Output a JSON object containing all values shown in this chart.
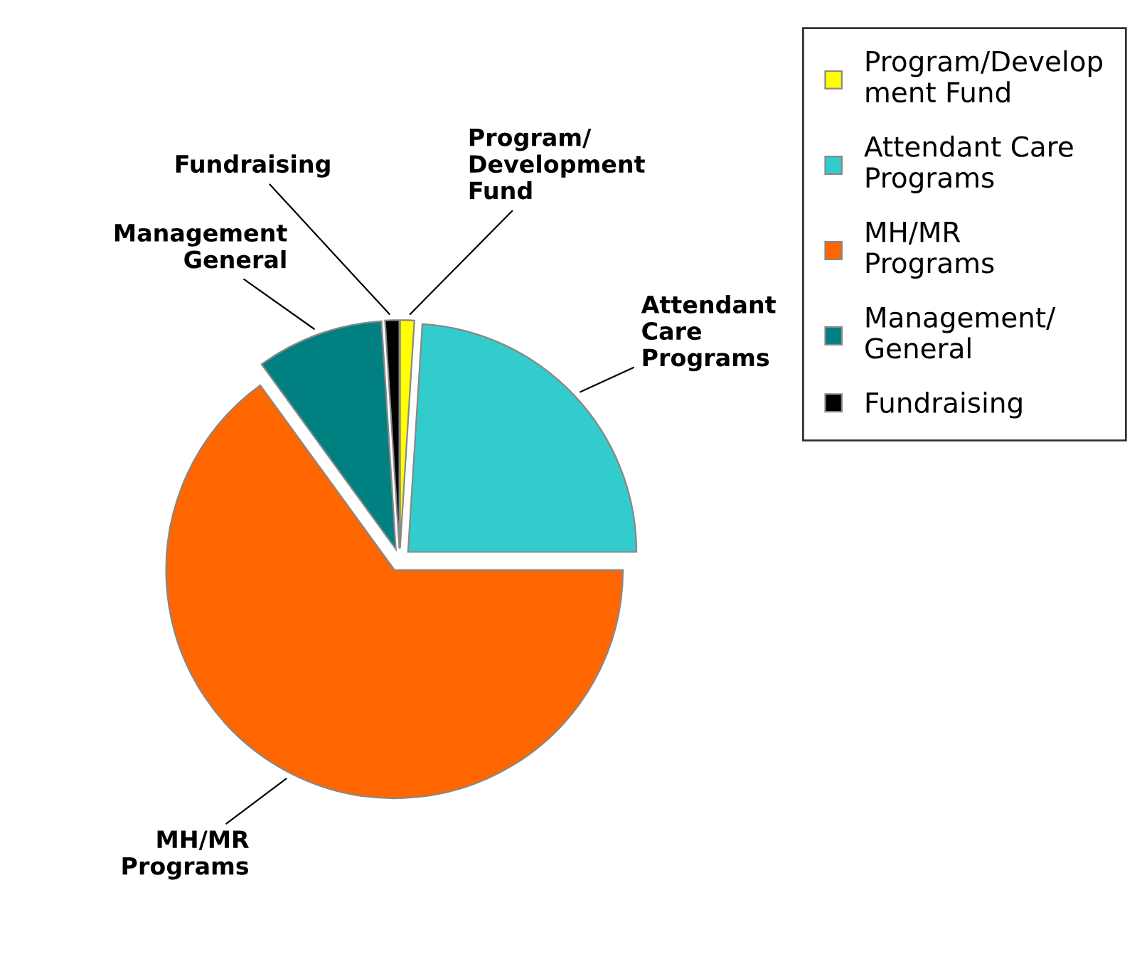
{
  "chart_data": {
    "type": "pie",
    "categories": [
      "Program/Develop\nment Fund",
      "Attendant Care\nPrograms",
      "MH/MR\nPrograms",
      "Management/\nGeneral",
      "Fundraising"
    ],
    "values": [
      1,
      24,
      65,
      9,
      1
    ],
    "colors": [
      "#ffff00",
      "#33cccc",
      "#ff6600",
      "#008080",
      "#000000"
    ],
    "annotations": [
      "Program/\nDevelopment\nFund",
      "Attendant\nCare\nPrograms",
      "MH/MR\nPrograms",
      "Management\nGeneral",
      "Fundraising"
    ],
    "legend": "right"
  }
}
